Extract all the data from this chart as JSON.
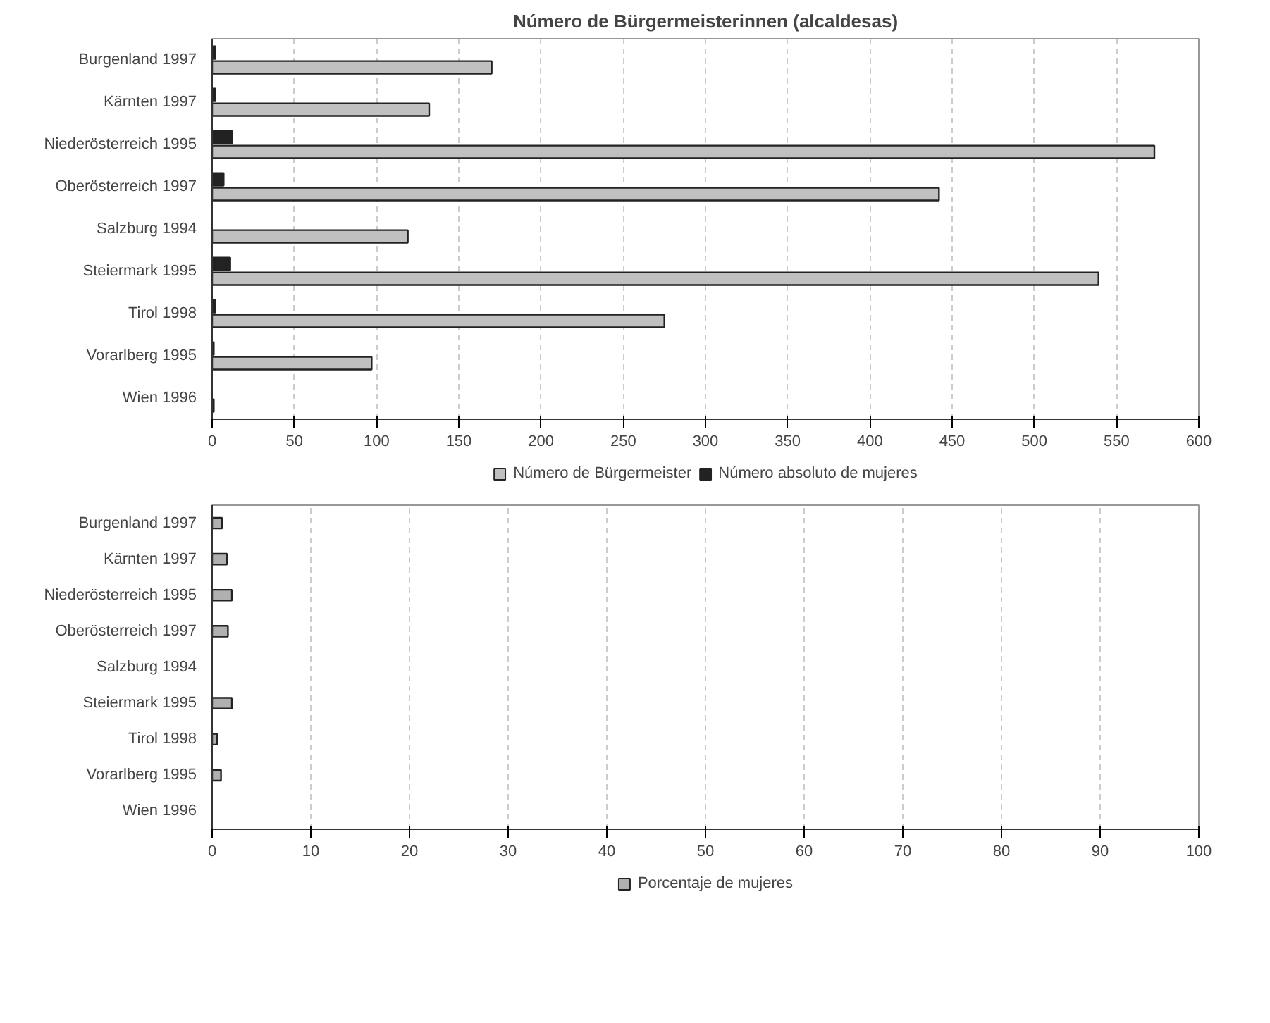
{
  "chart_data": [
    {
      "type": "bar",
      "orientation": "horizontal",
      "title": "Número de Bürgermeisterinnen (alcaldesas)",
      "categories": [
        "Burgenland 1997",
        "Kärnten 1997",
        "Niederösterreich 1995",
        "Oberösterreich 1997",
        "Salzburg 1994",
        "Steiermark 1995",
        "Tirol 1998",
        "Vorarlberg 1995",
        "Wien 1996"
      ],
      "series": [
        {
          "name": "Número de Bürgermeister",
          "color": "#c0c0c0",
          "values": [
            170,
            132,
            573,
            442,
            119,
            539,
            275,
            97,
            1
          ]
        },
        {
          "name": "Número absoluto de mujeres",
          "color": "#222222",
          "values": [
            2,
            2,
            12,
            7,
            0,
            11,
            2,
            1,
            0
          ]
        }
      ],
      "xlim": [
        0,
        600
      ],
      "xticks": [
        0,
        50,
        100,
        150,
        200,
        250,
        300,
        350,
        400,
        450,
        500,
        550,
        600
      ],
      "grid": "x",
      "legend": "bottom"
    },
    {
      "type": "bar",
      "orientation": "horizontal",
      "categories": [
        "Burgenland 1997",
        "Kärnten 1997",
        "Niederösterreich 1995",
        "Oberösterreich 1997",
        "Salzburg 1994",
        "Steiermark 1995",
        "Tirol 1998",
        "Vorarlberg 1995",
        "Wien 1996"
      ],
      "series": [
        {
          "name": "Porcentaje de mujeres",
          "color": "#b0b0b0",
          "values": [
            1.0,
            1.5,
            2.0,
            1.6,
            0,
            2.0,
            0.5,
            0.9,
            0
          ]
        }
      ],
      "xlim": [
        0,
        100
      ],
      "xticks": [
        0,
        10,
        20,
        30,
        40,
        50,
        60,
        70,
        80,
        90,
        100
      ],
      "grid": "x",
      "legend": "bottom"
    }
  ]
}
